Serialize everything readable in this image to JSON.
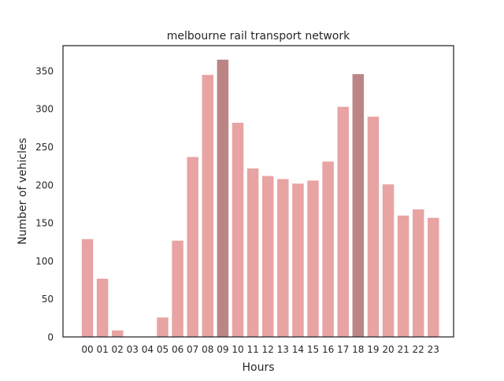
{
  "chart_data": {
    "type": "bar",
    "title": "melbourne rail transport network",
    "xlabel": "Hours",
    "ylabel": "Number of vehicles",
    "categories": [
      "00",
      "01",
      "02",
      "03",
      "04",
      "05",
      "06",
      "07",
      "08",
      "09",
      "10",
      "11",
      "12",
      "13",
      "14",
      "15",
      "16",
      "17",
      "18",
      "19",
      "20",
      "21",
      "22",
      "23"
    ],
    "values": [
      129,
      77,
      9,
      0,
      0,
      26,
      127,
      237,
      345,
      365,
      282,
      222,
      212,
      208,
      202,
      206,
      231,
      303,
      346,
      290,
      201,
      160,
      168,
      157
    ],
    "highlighted_categories": [
      "09",
      "18"
    ],
    "ylim": [
      0,
      383
    ],
    "yticks": [
      0,
      50,
      100,
      150,
      200,
      250,
      300,
      350
    ],
    "grid": false,
    "colors": {
      "bar": "#e8a3a3",
      "bar_highlight": "#bc8585",
      "axis": "#262626"
    }
  }
}
